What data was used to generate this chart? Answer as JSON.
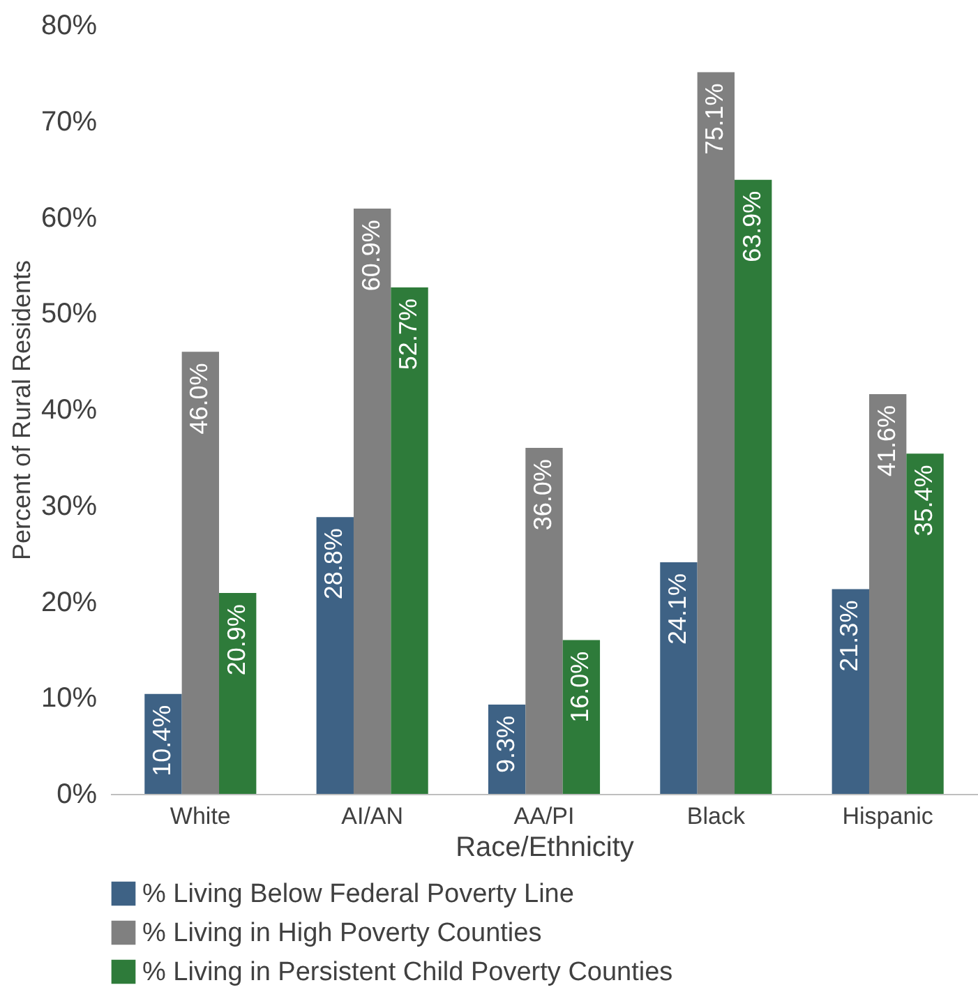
{
  "chart_data": {
    "type": "bar",
    "xlabel": "Race/Ethnicity",
    "ylabel": "Percent of Rural Residents",
    "categories": [
      "White",
      "AI/AN",
      "AA/PI",
      "Black",
      "Hispanic"
    ],
    "series": [
      {
        "name": "% Living Below Federal Poverty Line",
        "color": "#3e6285",
        "values": [
          10.4,
          28.8,
          9.3,
          24.1,
          21.3
        ],
        "value_labels": [
          "10.4%",
          "28.8%",
          "9.3%",
          "24.1%",
          "21.3%"
        ]
      },
      {
        "name": "% Living in High Poverty Counties",
        "color": "#808080",
        "values": [
          46.0,
          60.9,
          36.0,
          75.1,
          41.6
        ],
        "value_labels": [
          "46.0%",
          "60.9%",
          "36.0%",
          "75.1%",
          "41.6%"
        ]
      },
      {
        "name": "% Living in Persistent Child Poverty Counties",
        "color": "#2e7b3a",
        "values": [
          20.9,
          52.7,
          16.0,
          63.9,
          35.4
        ],
        "value_labels": [
          "20.9%",
          "52.7%",
          "16.0%",
          "63.9%",
          "35.4%"
        ]
      }
    ],
    "ylim": [
      0,
      80
    ],
    "yticks": [
      {
        "value": 0,
        "label": "0%"
      },
      {
        "value": 10,
        "label": "10%"
      },
      {
        "value": 20,
        "label": "20%"
      },
      {
        "value": 30,
        "label": "30%"
      },
      {
        "value": 40,
        "label": "40%"
      },
      {
        "value": 50,
        "label": "50%"
      },
      {
        "value": 60,
        "label": "60%"
      },
      {
        "value": 70,
        "label": "70%"
      },
      {
        "value": 80,
        "label": "80%"
      }
    ],
    "legend": "bottom",
    "grid": false
  }
}
